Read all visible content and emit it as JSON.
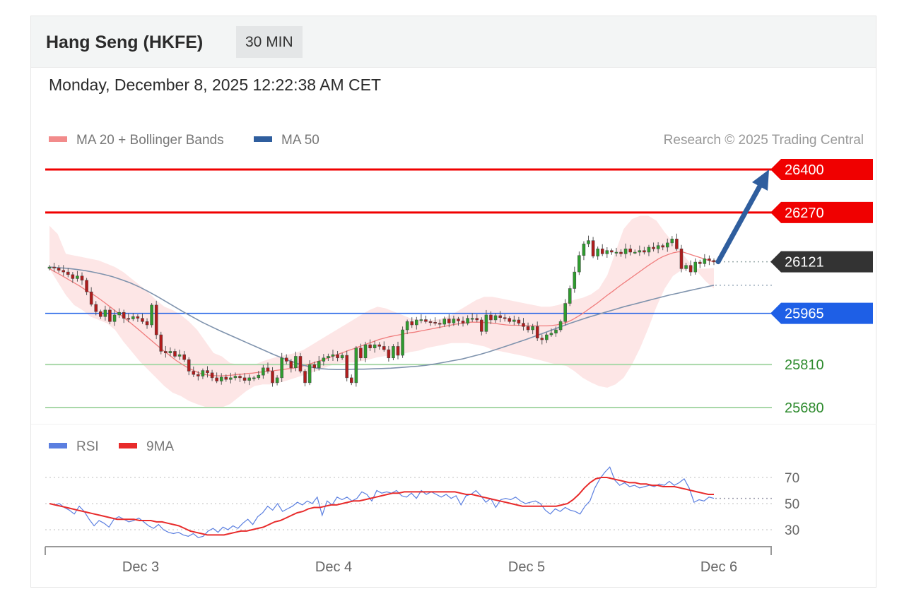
{
  "header": {
    "instrument": "Hang Seng (HKFE)",
    "timeframe": "30 MIN",
    "datetime": "Monday, December 8, 2025 12:22:38 AM CET"
  },
  "legend_main": [
    {
      "label": "MA 20 + Bollinger Bands",
      "color": "#f28b8b"
    },
    {
      "label": "MA 50",
      "color": "#2f5e9e"
    }
  ],
  "legend_rsi": [
    {
      "label": "RSI",
      "color": "#5b7fe0"
    },
    {
      "label": "9MA",
      "color": "#e82b2b"
    }
  ],
  "credit": "Research © 2025 Trading Central",
  "chart_data": [
    {
      "type": "candlestick",
      "x_labels": [
        "Dec 3",
        "Dec 4",
        "Dec 5",
        "Dec 6"
      ],
      "ylim": [
        25650,
        26460
      ],
      "levels": [
        {
          "label": "26400",
          "value": 26400,
          "kind": "resistance",
          "color": "#f00000"
        },
        {
          "label": "26270",
          "value": 26270,
          "kind": "resistance",
          "color": "#f00000"
        },
        {
          "label": "26121",
          "value": 26121,
          "kind": "last",
          "color": "#333333"
        },
        {
          "label": "25965",
          "value": 25965,
          "kind": "pivot",
          "color": "#1e5fe6"
        },
        {
          "label": "25810",
          "value": 25810,
          "kind": "support",
          "color": "#2e8b2e"
        },
        {
          "label": "25680",
          "value": 25680,
          "kind": "support",
          "color": "#2e8b2e"
        }
      ],
      "ma50_end": 26050,
      "closes": [
        26105,
        26102,
        26095,
        26090,
        26082,
        26070,
        26078,
        26065,
        26030,
        25992,
        25970,
        25955,
        25975,
        25940,
        25960,
        25968,
        25950,
        25948,
        25955,
        25950,
        25940,
        25930,
        25990,
        25900,
        25850,
        25845,
        25850,
        25835,
        25840,
        25825,
        25790,
        25780,
        25775,
        25792,
        25785,
        25770,
        25760,
        25772,
        25765,
        25770,
        25775,
        25770,
        25762,
        25770,
        25770,
        25778,
        25800,
        25790,
        25755,
        25770,
        25830,
        25820,
        25800,
        25835,
        25790,
        25755,
        25810,
        25800,
        25820,
        25830,
        25835,
        25840,
        25830,
        25838,
        25770,
        25755,
        25860,
        25830,
        25870,
        25860,
        25870,
        25865,
        25855,
        25830,
        25865,
        25838,
        25915,
        25940,
        25930,
        25945,
        25946,
        25940,
        25938,
        25935,
        25932,
        25948,
        25936,
        25948,
        25942,
        25935,
        25950,
        25950,
        25945,
        25910,
        25960,
        25945,
        25958,
        25952,
        25950,
        25940,
        25945,
        25935,
        25925,
        25915,
        25925,
        25890,
        25885,
        25900,
        25905,
        25915,
        25940,
        25995,
        26040,
        26090,
        26140,
        26175,
        26185,
        26138,
        26160,
        26145,
        26155,
        26150,
        26150,
        26145,
        26160,
        26150,
        26150,
        26155,
        26150,
        26165,
        26160,
        26170,
        26165,
        26178,
        26190,
        26160,
        26100,
        26110,
        26090,
        26120,
        26115,
        26130,
        26125,
        26121
      ],
      "ma20": [
        26100,
        26091,
        26083,
        26074,
        26065,
        26056,
        26047,
        26037,
        26028,
        26018,
        26007,
        25996,
        25984,
        25972,
        25960,
        25948,
        25936,
        25923,
        25910,
        25897,
        25884,
        25871,
        25858,
        25846,
        25834,
        25822,
        25812,
        25803,
        25795,
        25788,
        25782,
        25779,
        25777,
        25776,
        25776,
        25777,
        25778,
        25780,
        25781,
        25783,
        25784,
        25786,
        25788,
        25790,
        25791,
        25793,
        25795,
        25797,
        25799,
        25802,
        25806,
        25810,
        25815,
        25820,
        25825,
        25830,
        25836,
        25842,
        25847,
        25853,
        25858,
        25864,
        25869,
        25875,
        25880,
        25886,
        25890,
        25894,
        25897,
        25900,
        25903,
        25906,
        25908,
        25911,
        25914,
        25917,
        25920,
        25923,
        25926,
        25929,
        25932,
        25934,
        25936,
        25938,
        25938,
        25938,
        25937,
        25936,
        25934,
        25932,
        25930,
        25929,
        25929,
        25928,
        25928,
        25927,
        25927,
        25927,
        25927,
        25928,
        25930,
        25934,
        25938,
        25945,
        25954,
        25963,
        25974,
        25985,
        25996,
        26008,
        26020,
        26031,
        26043,
        26054,
        26065,
        26076,
        26087,
        26098,
        26109,
        26119,
        26129,
        26137,
        26143,
        26148,
        26151,
        26150,
        26145,
        26140,
        26135,
        26130,
        26125,
        26120
      ],
      "bb_upper": [
        26230,
        26205,
        26145,
        26140,
        26135,
        26130,
        26125,
        26115,
        26105,
        26090,
        26070,
        26050,
        26030,
        26005,
        25985,
        25975,
        25960,
        25940,
        25915,
        25880,
        25845,
        25835,
        25815,
        25810,
        25810,
        25810,
        25820,
        25828,
        25835,
        25840,
        25845,
        25855,
        25870,
        25885,
        25900,
        25915,
        25930,
        25945,
        25960,
        25975,
        25985,
        25980,
        25970,
        25960,
        25950,
        25945,
        25945,
        25945,
        25950,
        25960,
        25975,
        25990,
        26005,
        26015,
        26015,
        26010,
        26005,
        26000,
        25995,
        25990,
        25985,
        25985,
        25990,
        25998,
        26006,
        26012,
        26022,
        26040,
        26080,
        26150,
        26220,
        26250,
        26260,
        26260,
        26245,
        26210,
        26180,
        26150,
        26120,
        26090,
        26062,
        26040
      ],
      "bb_lower": [
        26100,
        26060,
        26020,
        25990,
        25975,
        25955,
        25945,
        25935,
        25915,
        25880,
        25850,
        25820,
        25795,
        25770,
        25745,
        25725,
        25715,
        25700,
        25690,
        25682,
        25678,
        25680,
        25690,
        25710,
        25730,
        25745,
        25750,
        25750,
        25755,
        25762,
        25770,
        25778,
        25786,
        25795,
        25805,
        25812,
        25816,
        25816,
        25820,
        25826,
        25832,
        25836,
        25838,
        25842,
        25848,
        25852,
        25860,
        25865,
        25870,
        25875,
        25875,
        25875,
        25870,
        25865,
        25855,
        25850,
        25845,
        25840,
        25835,
        25828,
        25822,
        25815,
        25810,
        25806,
        25790,
        25770,
        25756,
        25745,
        25740,
        25750,
        25770,
        25810,
        25860,
        25920,
        25985,
        26040,
        26078,
        26095,
        26100,
        26100,
        26100,
        26102
      ],
      "ma50": [
        26105,
        26103,
        26101,
        26098,
        26094,
        26089,
        26083,
        26076,
        26067,
        26057,
        26045,
        26031,
        26016,
        26000,
        25984,
        25968,
        25953,
        25938,
        25925,
        25912,
        25900,
        25888,
        25876,
        25864,
        25852,
        25840,
        25829,
        25819,
        25810,
        25803,
        25798,
        25796,
        25795,
        25795,
        25796,
        25796,
        25797,
        25798,
        25799,
        25801,
        25803,
        25805,
        25808,
        25812,
        25817,
        25822,
        25827,
        25834,
        25841,
        25849,
        25858,
        25867,
        25876,
        25885,
        25895,
        25905,
        25915,
        25925,
        25935,
        25944,
        25953,
        25961,
        25969,
        25977,
        25985,
        25992,
        25999,
        26006,
        26013,
        26020,
        26026,
        26032,
        26038,
        26044,
        26050
      ]
    },
    {
      "type": "line",
      "name": "RSI",
      "yticks": [
        30,
        50,
        70
      ],
      "ylim": [
        15,
        85
      ],
      "series": [
        {
          "name": "RSI",
          "color": "#5b7fe0",
          "values": [
            50,
            49,
            50,
            47,
            45,
            42,
            48,
            44,
            38,
            33,
            37,
            35,
            32,
            38,
            40,
            38,
            36,
            37,
            39,
            36,
            33,
            31,
            34,
            30,
            28,
            27,
            28,
            26,
            25,
            27,
            24,
            25,
            29,
            31,
            28,
            32,
            30,
            33,
            31,
            35,
            38,
            34,
            40,
            43,
            48,
            45,
            50,
            44,
            46,
            48,
            51,
            49,
            52,
            50,
            55,
            41,
            52,
            49,
            55,
            53,
            55,
            52,
            54,
            59,
            57,
            52,
            60,
            58,
            59,
            58,
            60,
            56,
            55,
            58,
            54,
            60,
            57,
            59,
            57,
            55,
            57,
            54,
            56,
            49,
            56,
            57,
            60,
            56,
            51,
            54,
            47,
            53,
            54,
            53,
            55,
            52,
            50,
            51,
            52,
            50,
            45,
            42,
            46,
            44,
            47,
            45,
            44,
            42,
            48,
            52,
            62,
            69,
            74,
            78,
            68,
            64,
            66,
            63,
            64,
            62,
            63,
            64,
            63,
            65,
            64,
            67,
            64,
            66,
            69,
            62,
            51,
            53,
            52,
            55,
            54
          ],
          "visible": true
        },
        {
          "name": "9MA",
          "color": "#e82b2b",
          "values": [
            50,
            49,
            48,
            47,
            46,
            45,
            44,
            43,
            42,
            41,
            40,
            39,
            38,
            38,
            38,
            38,
            37,
            37,
            37,
            36,
            36,
            35,
            34,
            33,
            31,
            29,
            28,
            27,
            26,
            26,
            26,
            26,
            27,
            28,
            29,
            29,
            30,
            31,
            32,
            34,
            36,
            37,
            39,
            41,
            43,
            44,
            46,
            47,
            47,
            48,
            49,
            49,
            50,
            51,
            52,
            52,
            53,
            54,
            55,
            56,
            57,
            58,
            58,
            59,
            59,
            59,
            59,
            59,
            59,
            59,
            59,
            59,
            59,
            58,
            57,
            57,
            56,
            55,
            54,
            53,
            52,
            51,
            50,
            49,
            48,
            48,
            48,
            48,
            48,
            48,
            48,
            49,
            50,
            53,
            57,
            62,
            66,
            69,
            70,
            70,
            69,
            68,
            67,
            66,
            66,
            65,
            65,
            64,
            64,
            63,
            63,
            63,
            62,
            61,
            60,
            59,
            58,
            57,
            57
          ],
          "visible": true
        }
      ]
    }
  ]
}
